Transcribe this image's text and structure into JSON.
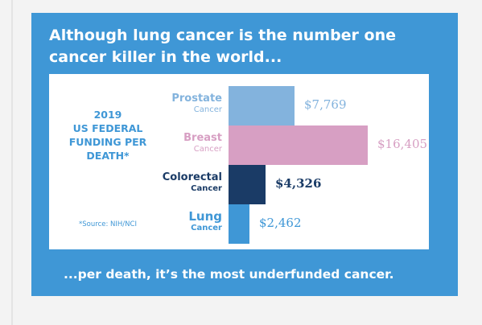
{
  "headline": "Although lung cancer is the number one cancer killer in the world...",
  "footer": "...per death, it’s the most underfunded cancer.",
  "side_label": "2019\nUS FEDERAL\nFUNDING PER\nDEATH*",
  "source": "*Source: NIH/NCI",
  "colors": {
    "card": "#3f97d6",
    "prostate": "#83b3dd",
    "breast": "#d79fc3",
    "colorectal": "#1a3b66",
    "lung": "#3f97d6"
  },
  "chart_data": {
    "type": "bar",
    "orientation": "horizontal",
    "title": "2019 US FEDERAL FUNDING PER DEATH*",
    "categories": [
      {
        "name": "Prostate",
        "sub": "Cancer",
        "color": "#83b3dd",
        "label_color": "#83b3dd",
        "value_color": "#83b3dd"
      },
      {
        "name": "Breast",
        "sub": "Cancer",
        "color": "#d79fc3",
        "label_color": "#d79fc3",
        "value_color": "#d79fc3"
      },
      {
        "name": "Colorectal",
        "sub": "Cancer",
        "color": "#1a3b66",
        "label_color": "#1a3b66",
        "value_color": "#1a3b66"
      },
      {
        "name": "Lung",
        "sub": "Cancer",
        "color": "#3f97d6",
        "label_color": "#3f97d6",
        "value_color": "#3f97d6"
      }
    ],
    "values": [
      7769,
      16405,
      4326,
      2462
    ],
    "value_labels": [
      "$7,769",
      "$16,405",
      "$4,326",
      "$2,462"
    ],
    "unit": "USD per death",
    "xlim": [
      0,
      16405
    ],
    "grid": false,
    "legend": "none"
  }
}
